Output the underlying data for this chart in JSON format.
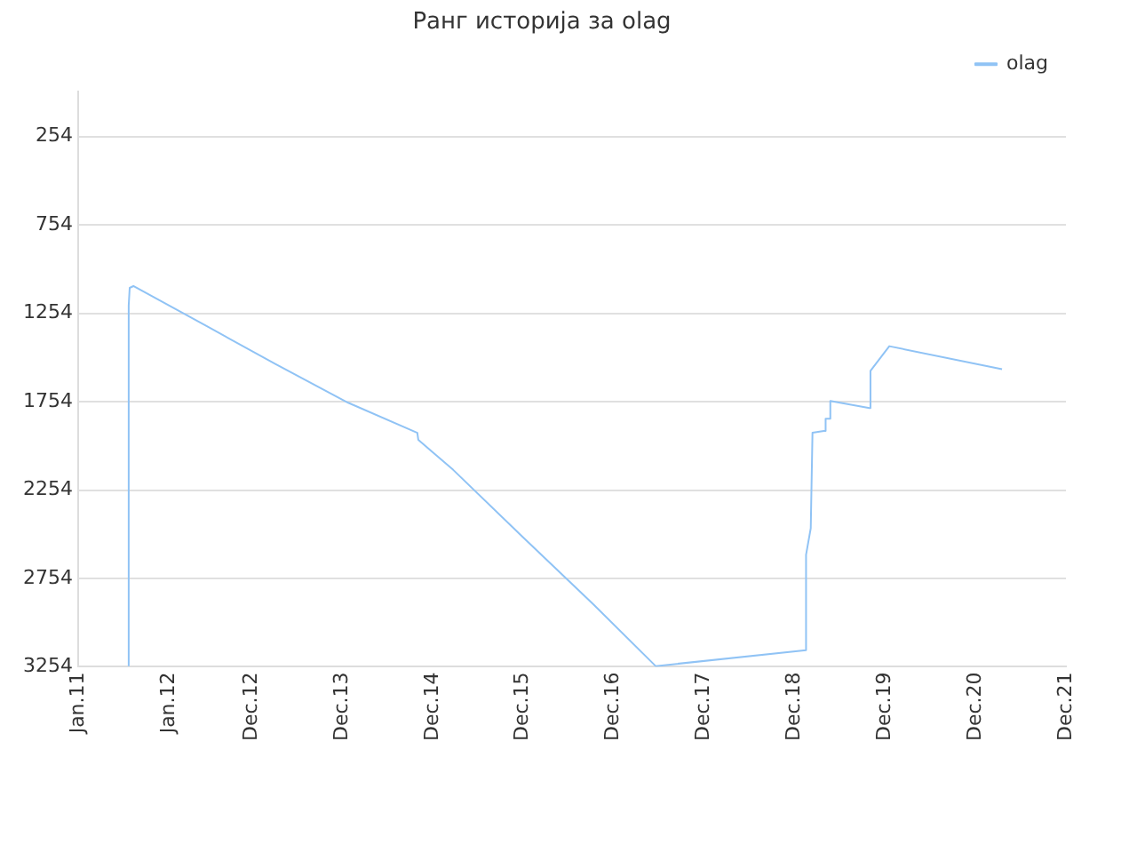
{
  "chart_data": {
    "type": "line",
    "title": "Ранг историја за olag",
    "legend": "top right",
    "grid": "y",
    "marker": "none",
    "xlim": [
      "2011-01-01",
      "2021-12-01"
    ],
    "xticks": [
      {
        "value": "2011-01-01",
        "label": "Jan.11"
      },
      {
        "value": "2012-01-01",
        "label": "Jan.12"
      },
      {
        "value": "2012-12-01",
        "label": "Dec.12"
      },
      {
        "value": "2013-12-01",
        "label": "Dec.13"
      },
      {
        "value": "2014-12-01",
        "label": "Dec.14"
      },
      {
        "value": "2015-12-01",
        "label": "Dec.15"
      },
      {
        "value": "2016-12-01",
        "label": "Dec.16"
      },
      {
        "value": "2017-12-01",
        "label": "Dec.17"
      },
      {
        "value": "2018-12-01",
        "label": "Dec.18"
      },
      {
        "value": "2019-12-01",
        "label": "Dec.19"
      },
      {
        "value": "2020-12-01",
        "label": "Dec.20"
      },
      {
        "value": "2021-12-01",
        "label": "Dec.21"
      }
    ],
    "ylim": [
      3254,
      0
    ],
    "yticks": [
      254,
      754,
      1254,
      1754,
      2254,
      2754,
      3254
    ],
    "series": [
      {
        "name": "olag",
        "color": "#90c3f5",
        "x": [
          "2011-07-24",
          "2011-07-24",
          "2011-07-28",
          "2011-08-12",
          "2012-06-07",
          "2013-03-07",
          "2013-12-26",
          "2014-10-01",
          "2014-10-05",
          "2015-02-23",
          "2015-12-01",
          "2016-09-10",
          "2017-05-20",
          "2019-01-17",
          "2019-01-17",
          "2019-02-05",
          "2019-02-12",
          "2019-03-30",
          "2019-04-06",
          "2019-04-06",
          "2019-04-25",
          "2019-04-25",
          "2019-09-30",
          "2019-10-04",
          "2019-12-19",
          "2021-03-18"
        ],
        "values": [
          3250,
          1210,
          1110,
          1100,
          1330,
          1540,
          1760,
          1930,
          1970,
          2140,
          2520,
          2900,
          3250,
          3160,
          2620,
          2470,
          1930,
          1920,
          1920,
          1850,
          1850,
          1750,
          1790,
          1580,
          1440,
          1570
        ]
      }
    ]
  }
}
